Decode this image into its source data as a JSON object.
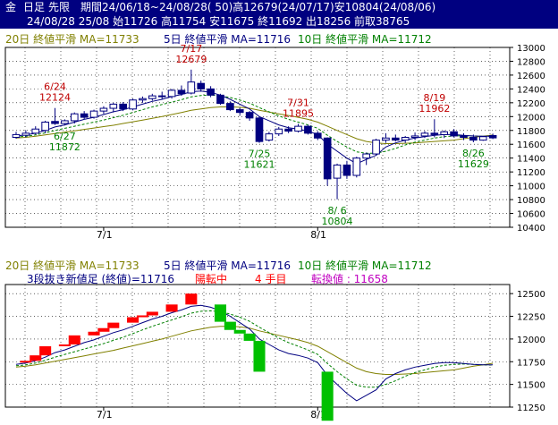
{
  "header": {
    "line1": {
      "market": "金",
      "period_type": "日足",
      "contract": "先限",
      "range": "期間24/06/18~24/08/28( 50)高12679(24/07/17)安10804(24/08/06)"
    },
    "line2": "24/08/28 25/08 始11726 高11754 安11675 終11692 出18256 前取38765"
  },
  "ma_legend": {
    "ma20": "20日 終値平滑 MA=11733",
    "ma5": "5日 終値平滑 MA=11716",
    "ma10": "10日 終値平滑 MA=11712"
  },
  "lower_info": {
    "label": "3段抜き新値足 (終値)=11716",
    "trend": "陽転中",
    "count": "4 手目",
    "reversal": "転換値 : 11658"
  },
  "colors": {
    "up": "#000080",
    "down": "#000080",
    "upper_line_ma20": "#808000",
    "upper_line_ma5": "#000080",
    "upper_line_ma10": "#008000",
    "new_high": "#ff0000",
    "new_low": "#00c000",
    "label_red": "#c00000",
    "label_green": "#008000",
    "magenta": "#c000c0"
  },
  "chart_data": [
    {
      "type": "candlestick",
      "title": "",
      "x_labels": [
        "7/1",
        "8/1"
      ],
      "ylim": [
        10400,
        13000
      ],
      "yticks": [
        10400,
        10600,
        10800,
        11000,
        11200,
        11400,
        11600,
        11800,
        12000,
        12200,
        12400,
        12600,
        12800,
        13000
      ],
      "grid": true,
      "candles": [
        {
          "o": 11700,
          "h": 11780,
          "l": 11680,
          "c": 11740
        },
        {
          "o": 11730,
          "h": 11800,
          "l": 11700,
          "c": 11760
        },
        {
          "o": 11760,
          "h": 11860,
          "l": 11740,
          "c": 11820
        },
        {
          "o": 11800,
          "h": 11940,
          "l": 11760,
          "c": 11920
        },
        {
          "o": 11930,
          "h": 12124,
          "l": 11880,
          "c": 11900
        },
        {
          "o": 11900,
          "h": 11960,
          "l": 11872,
          "c": 11940
        },
        {
          "o": 11940,
          "h": 12060,
          "l": 11900,
          "c": 12040
        },
        {
          "o": 12040,
          "h": 12080,
          "l": 11960,
          "c": 11990
        },
        {
          "o": 11990,
          "h": 12100,
          "l": 11970,
          "c": 12080
        },
        {
          "o": 12080,
          "h": 12150,
          "l": 12040,
          "c": 12120
        },
        {
          "o": 12120,
          "h": 12200,
          "l": 12060,
          "c": 12180
        },
        {
          "o": 12180,
          "h": 12210,
          "l": 12080,
          "c": 12110
        },
        {
          "o": 12110,
          "h": 12260,
          "l": 12090,
          "c": 12240
        },
        {
          "o": 12240,
          "h": 12290,
          "l": 12200,
          "c": 12260
        },
        {
          "o": 12260,
          "h": 12330,
          "l": 12230,
          "c": 12300
        },
        {
          "o": 12300,
          "h": 12360,
          "l": 12250,
          "c": 12290
        },
        {
          "o": 12290,
          "h": 12400,
          "l": 12260,
          "c": 12380
        },
        {
          "o": 12380,
          "h": 12450,
          "l": 12300,
          "c": 12330
        },
        {
          "o": 12340,
          "h": 12679,
          "l": 12320,
          "c": 12500
        },
        {
          "o": 12480,
          "h": 12520,
          "l": 12360,
          "c": 12400
        },
        {
          "o": 12400,
          "h": 12440,
          "l": 12280,
          "c": 12310
        },
        {
          "o": 12310,
          "h": 12330,
          "l": 12170,
          "c": 12190
        },
        {
          "o": 12190,
          "h": 12220,
          "l": 12080,
          "c": 12100
        },
        {
          "o": 12100,
          "h": 12130,
          "l": 12020,
          "c": 12060
        },
        {
          "o": 12060,
          "h": 12080,
          "l": 11940,
          "c": 11980
        },
        {
          "o": 11980,
          "h": 12000,
          "l": 11621,
          "c": 11640
        },
        {
          "o": 11660,
          "h": 11780,
          "l": 11640,
          "c": 11750
        },
        {
          "o": 11750,
          "h": 11850,
          "l": 11720,
          "c": 11820
        },
        {
          "o": 11820,
          "h": 11860,
          "l": 11760,
          "c": 11790
        },
        {
          "o": 11790,
          "h": 11895,
          "l": 11770,
          "c": 11860
        },
        {
          "o": 11860,
          "h": 11880,
          "l": 11740,
          "c": 11760
        },
        {
          "o": 11760,
          "h": 11790,
          "l": 11660,
          "c": 11690
        },
        {
          "o": 11690,
          "h": 11700,
          "l": 11000,
          "c": 11100
        },
        {
          "o": 11110,
          "h": 11320,
          "l": 10804,
          "c": 11300
        },
        {
          "o": 11300,
          "h": 11360,
          "l": 11100,
          "c": 11150
        },
        {
          "o": 11150,
          "h": 11420,
          "l": 11120,
          "c": 11400
        },
        {
          "o": 11400,
          "h": 11480,
          "l": 11300,
          "c": 11460
        },
        {
          "o": 11460,
          "h": 11680,
          "l": 11440,
          "c": 11660
        },
        {
          "o": 11660,
          "h": 11760,
          "l": 11620,
          "c": 11690
        },
        {
          "o": 11690,
          "h": 11740,
          "l": 11640,
          "c": 11660
        },
        {
          "o": 11660,
          "h": 11720,
          "l": 11620,
          "c": 11700
        },
        {
          "o": 11700,
          "h": 11770,
          "l": 11660,
          "c": 11720
        },
        {
          "o": 11720,
          "h": 11790,
          "l": 11690,
          "c": 11760
        },
        {
          "o": 11760,
          "h": 11962,
          "l": 11700,
          "c": 11740
        },
        {
          "o": 11740,
          "h": 11800,
          "l": 11690,
          "c": 11780
        },
        {
          "o": 11780,
          "h": 11820,
          "l": 11700,
          "c": 11720
        },
        {
          "o": 11720,
          "h": 11760,
          "l": 11660,
          "c": 11700
        },
        {
          "o": 11700,
          "h": 11740,
          "l": 11629,
          "c": 11660
        },
        {
          "o": 11660,
          "h": 11720,
          "l": 11650,
          "c": 11710
        },
        {
          "o": 11726,
          "h": 11754,
          "l": 11675,
          "c": 11692
        }
      ],
      "ma20": [
        11690,
        11700,
        11715,
        11735,
        11755,
        11775,
        11795,
        11815,
        11835,
        11855,
        11875,
        11900,
        11925,
        11950,
        11975,
        12000,
        12030,
        12060,
        12090,
        12110,
        12130,
        12140,
        12140,
        12135,
        12120,
        12090,
        12065,
        12040,
        12015,
        11990,
        11960,
        11920,
        11860,
        11800,
        11740,
        11680,
        11640,
        11620,
        11610,
        11610,
        11615,
        11620,
        11630,
        11640,
        11650,
        11660,
        11680,
        11700,
        11715,
        11733
      ],
      "ma5": [
        11720,
        11735,
        11760,
        11800,
        11850,
        11880,
        11920,
        11960,
        11990,
        12030,
        12070,
        12100,
        12140,
        12180,
        12220,
        12250,
        12290,
        12320,
        12360,
        12370,
        12350,
        12310,
        12250,
        12180,
        12110,
        12000,
        11940,
        11880,
        11840,
        11820,
        11790,
        11740,
        11600,
        11500,
        11400,
        11320,
        11380,
        11440,
        11560,
        11620,
        11660,
        11690,
        11710,
        11730,
        11740,
        11740,
        11730,
        11720,
        11715,
        11716
      ],
      "ma10": [
        11705,
        11715,
        11735,
        11765,
        11800,
        11830,
        11860,
        11890,
        11920,
        11950,
        11985,
        12020,
        12060,
        12100,
        12140,
        12175,
        12210,
        12245,
        12285,
        12305,
        12310,
        12300,
        12275,
        12240,
        12195,
        12130,
        12070,
        12010,
        11960,
        11920,
        11880,
        11830,
        11730,
        11640,
        11560,
        11490,
        11470,
        11470,
        11500,
        11540,
        11590,
        11630,
        11660,
        11690,
        11710,
        11720,
        11725,
        11720,
        11715,
        11712
      ],
      "annotations": [
        {
          "text": "6/24",
          "value": "12124",
          "color": "red",
          "at": 4,
          "pos": "above"
        },
        {
          "text": "6/27",
          "value": "11872",
          "color": "green",
          "at": 5,
          "pos": "below"
        },
        {
          "text": "7/17",
          "value": "12679",
          "color": "red",
          "at": 18,
          "pos": "above"
        },
        {
          "text": "7/25",
          "value": "11621",
          "color": "green",
          "at": 25,
          "pos": "below"
        },
        {
          "text": "7/31",
          "value": "11895",
          "color": "red",
          "at": 29,
          "pos": "above"
        },
        {
          "text": "8/ 6",
          "value": "10804",
          "color": "green",
          "at": 33,
          "pos": "below"
        },
        {
          "text": "8/19",
          "value": "11962",
          "color": "red",
          "at": 43,
          "pos": "above"
        },
        {
          "text": "8/26",
          "value": "11629",
          "color": "green",
          "at": 47,
          "pos": "below"
        }
      ]
    },
    {
      "type": "three-line-break",
      "title": "",
      "x_labels": [
        "7/1",
        "8/1"
      ],
      "ylim": [
        11250,
        12600
      ],
      "yticks": [
        11250,
        11500,
        11750,
        12000,
        12250,
        12500
      ],
      "grid": true,
      "note": "bricks approximated from image"
    }
  ]
}
